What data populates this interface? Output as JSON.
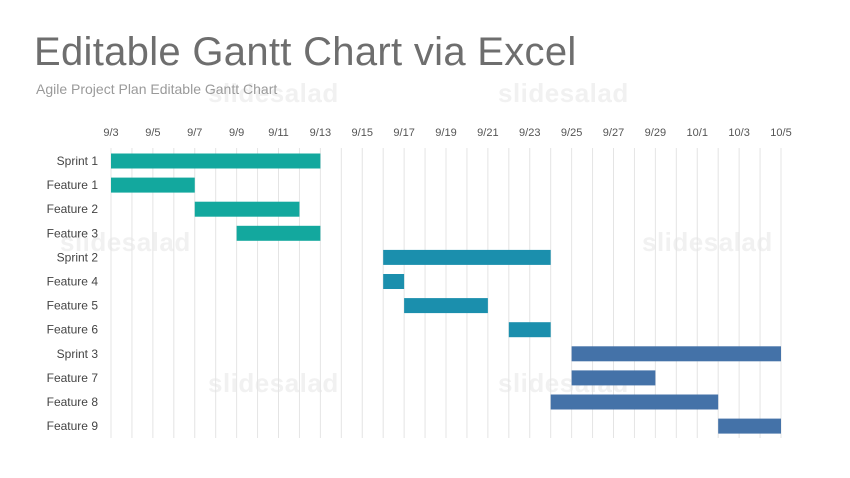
{
  "slide": {
    "title": "Editable Gantt Chart via Excel",
    "subtitle": "Agile Project Plan Editable Gantt Chart",
    "watermark": "slidesalad"
  },
  "chart_data": {
    "type": "gantt",
    "x_ticks": [
      "9/3",
      "9/5",
      "9/7",
      "9/9",
      "9/11",
      "9/13",
      "9/15",
      "9/17",
      "9/19",
      "9/21",
      "9/23",
      "9/25",
      "9/27",
      "9/29",
      "10/1",
      "10/3",
      "10/5"
    ],
    "xlim": [
      "9/3",
      "10/5"
    ],
    "grid": true,
    "tasks": [
      {
        "name": "Sprint 1",
        "start": "9/3",
        "end": "9/13",
        "group": 1
      },
      {
        "name": "Feature 1",
        "start": "9/3",
        "end": "9/7",
        "group": 1
      },
      {
        "name": "Feature 2",
        "start": "9/7",
        "end": "9/12",
        "group": 1
      },
      {
        "name": "Feature 3",
        "start": "9/9",
        "end": "9/13",
        "group": 1
      },
      {
        "name": "Sprint 2",
        "start": "9/16",
        "end": "9/24",
        "group": 2
      },
      {
        "name": "Feature 4",
        "start": "9/16",
        "end": "9/17",
        "group": 2
      },
      {
        "name": "Feature 5",
        "start": "9/17",
        "end": "9/21",
        "group": 2
      },
      {
        "name": "Feature 6",
        "start": "9/22",
        "end": "9/24",
        "group": 2
      },
      {
        "name": "Sprint 3",
        "start": "9/25",
        "end": "10/5",
        "group": 3
      },
      {
        "name": "Feature 7",
        "start": "9/25",
        "end": "9/29",
        "group": 3
      },
      {
        "name": "Feature 8",
        "start": "9/24",
        "end": "10/2",
        "group": 3
      },
      {
        "name": "Feature 9",
        "start": "10/2",
        "end": "10/5",
        "group": 3
      }
    ],
    "colors": {
      "1": "#13a89e",
      "2": "#1b8fad",
      "3": "#4472a8"
    },
    "grid_color": "#e4e4e4"
  }
}
